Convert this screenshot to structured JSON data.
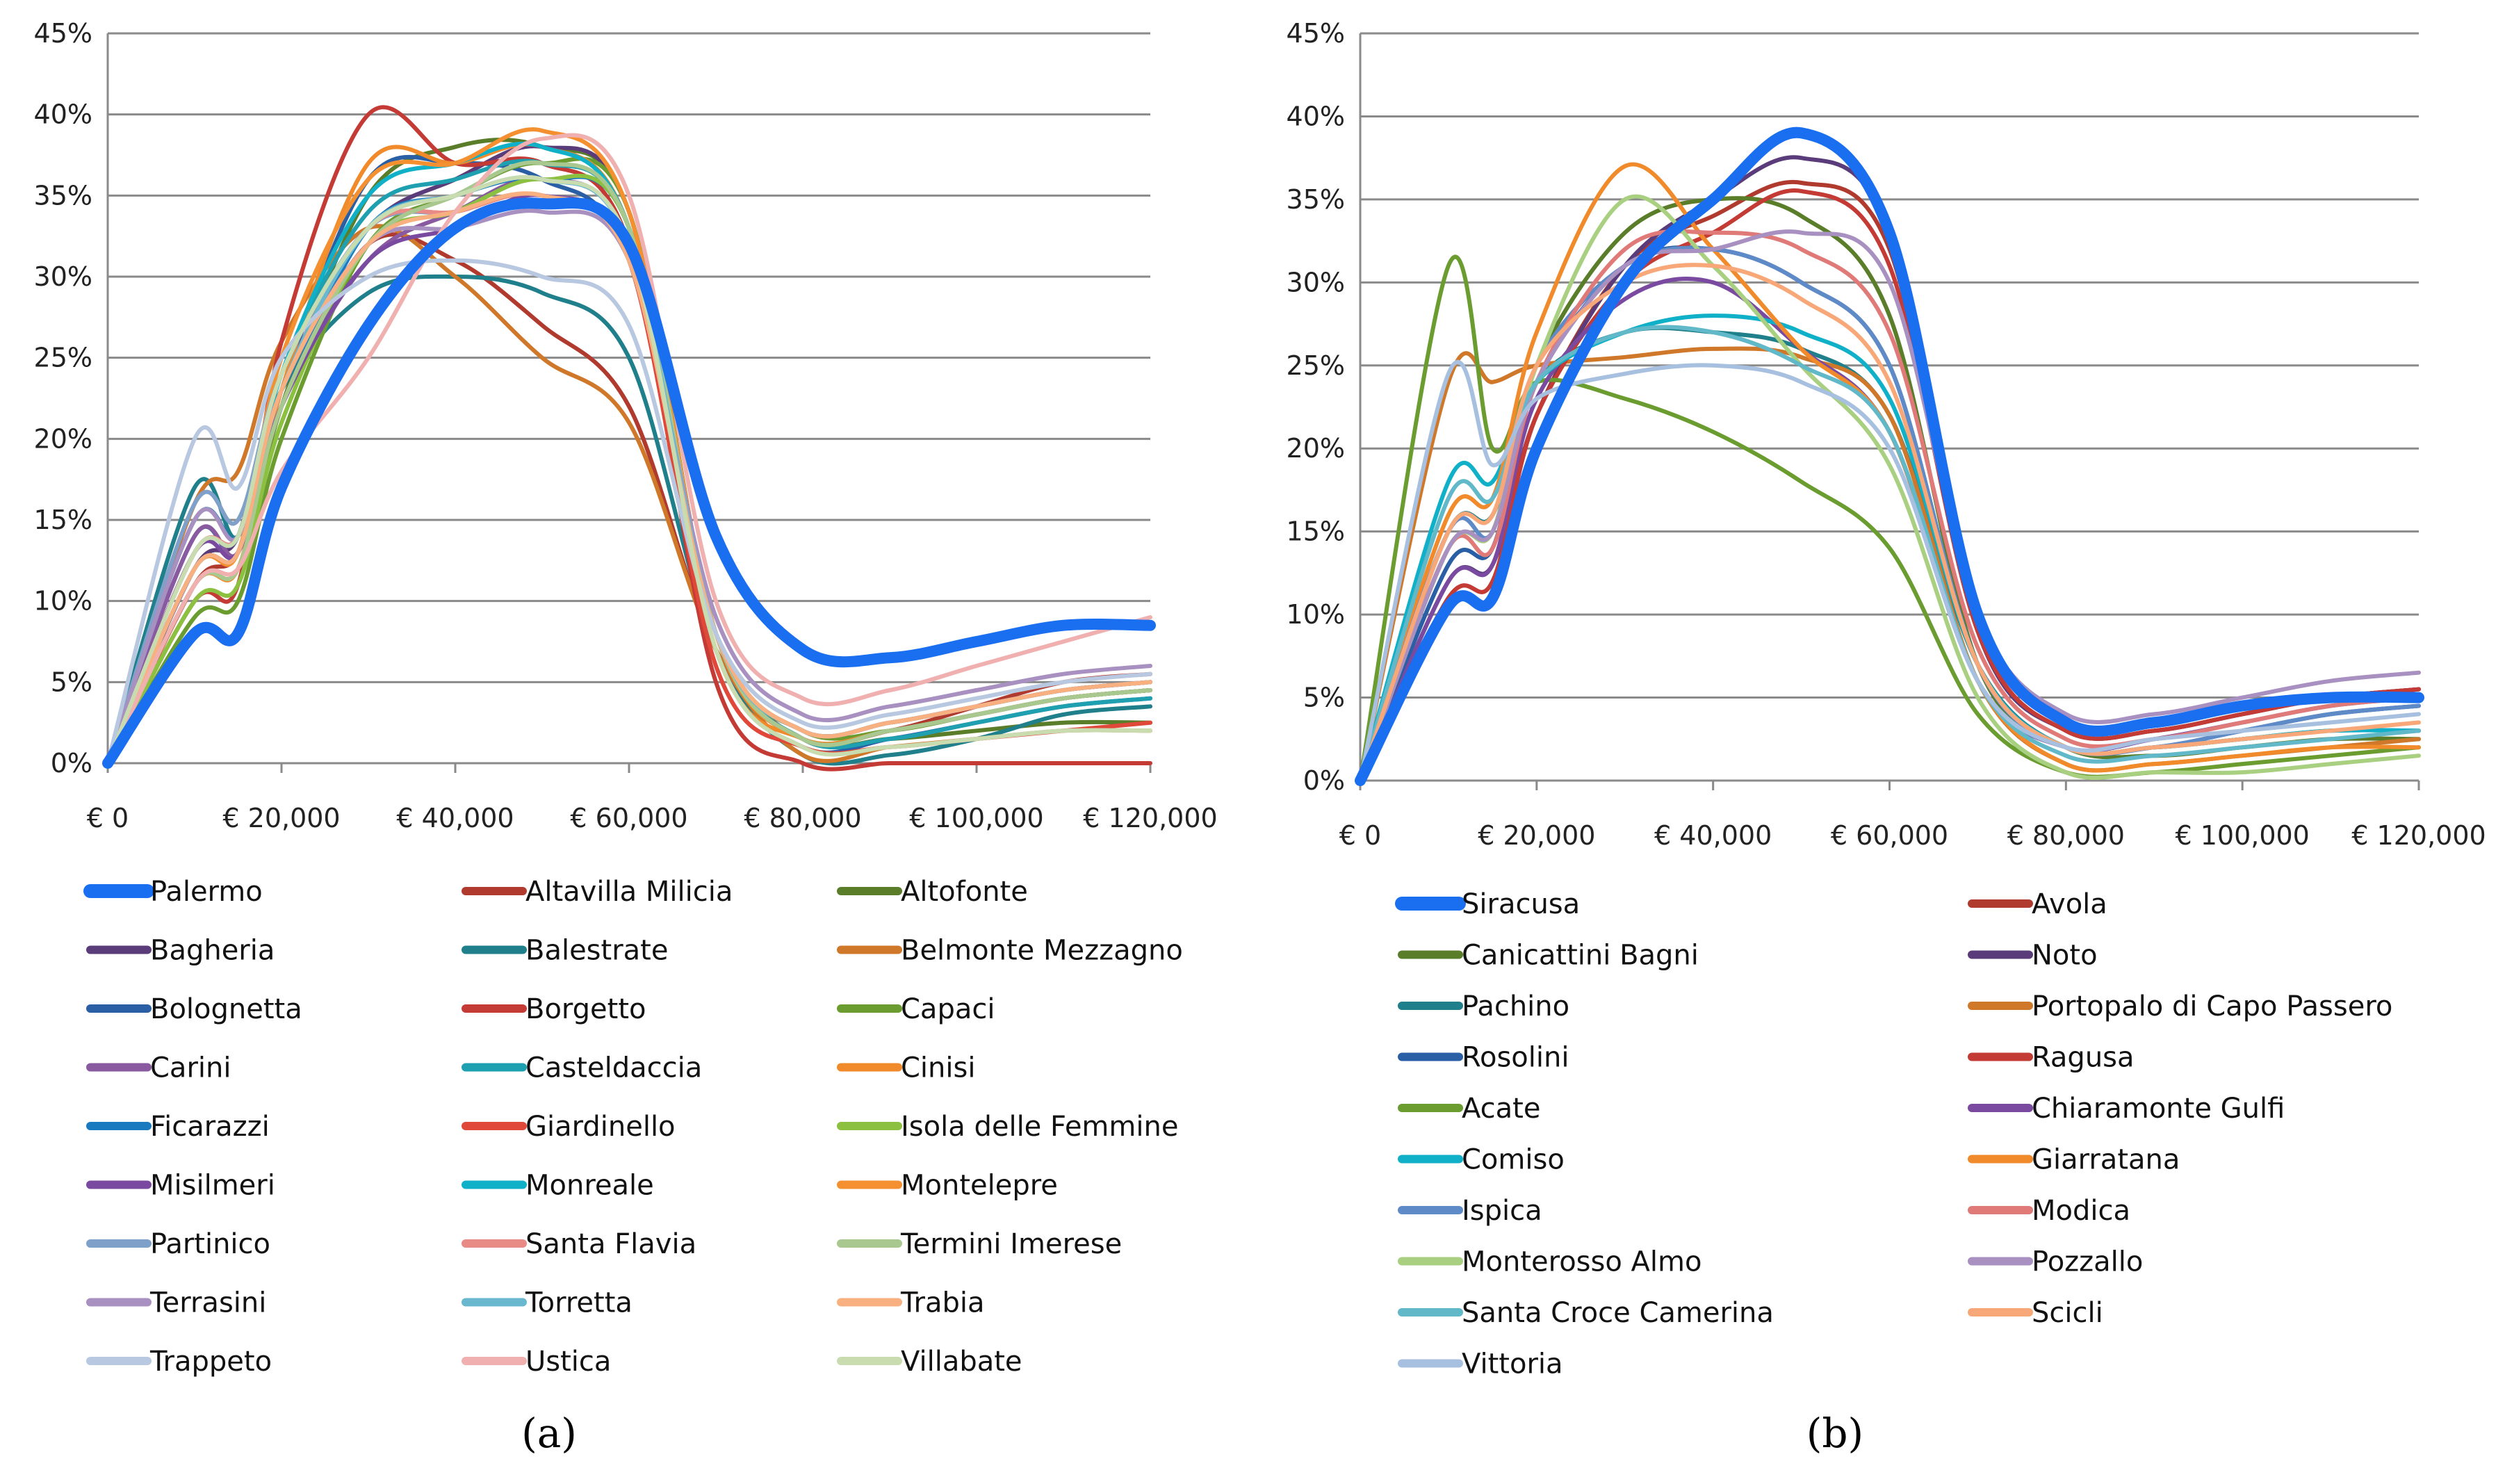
{
  "chart_data": [
    {
      "type": "line",
      "panel_label": "(a)",
      "x": [
        0,
        10000,
        15000,
        20000,
        30000,
        40000,
        50000,
        60000,
        70000,
        80000,
        90000,
        100000,
        110000,
        120000
      ],
      "xlim": [
        0,
        120000
      ],
      "ylim": [
        0,
        45
      ],
      "x_ticks": [
        "€ 0",
        "€ 20,000",
        "€ 40,000",
        "€ 60,000",
        "€ 80,000",
        "€ 100,000",
        "€ 120,000"
      ],
      "y_ticks": [
        "0%",
        "5%",
        "10%",
        "15%",
        "20%",
        "25%",
        "30%",
        "35%",
        "40%",
        "45%"
      ],
      "legend_columns": 3,
      "series": [
        {
          "name": "Palermo",
          "color": "#1a6ef0",
          "width": 16,
          "values": [
            0,
            8,
            8,
            17,
            27,
            33,
            34.5,
            32,
            14,
            7,
            6.5,
            7.5,
            8.5,
            8.5
          ]
        },
        {
          "name": "Altavilla Milicia",
          "color": "#b03a2e",
          "width": 6,
          "values": [
            0,
            11,
            13,
            22,
            32,
            31,
            27,
            22,
            7,
            1.5,
            2,
            3.5,
            5,
            5.5
          ]
        },
        {
          "name": "Altofonte",
          "color": "#5a7d2a",
          "width": 6,
          "values": [
            0,
            11,
            12,
            22,
            35,
            38,
            38,
            34,
            8,
            1.5,
            1.5,
            2,
            2.5,
            2.5
          ]
        },
        {
          "name": "Bagheria",
          "color": "#5b3c7a",
          "width": 6,
          "values": [
            0,
            12,
            14,
            24,
            33,
            36,
            38,
            34,
            8,
            1.5,
            2,
            3,
            4,
            4.5
          ]
        },
        {
          "name": "Balestrate",
          "color": "#1f7f8a",
          "width": 6,
          "values": [
            0,
            17,
            14,
            23,
            29,
            30,
            29,
            25,
            7,
            0.5,
            0.5,
            1.5,
            3,
            3.5
          ]
        },
        {
          "name": "Belmonte Mezzagno",
          "color": "#d0782a",
          "width": 6,
          "values": [
            0,
            16,
            18,
            26,
            33,
            30,
            25,
            21,
            7,
            0.5,
            1,
            1.5,
            2,
            2
          ]
        },
        {
          "name": "Bolognetta",
          "color": "#2a5fa5",
          "width": 6,
          "values": [
            0,
            14,
            13,
            23,
            36,
            37,
            36,
            31,
            7,
            1,
            1.5,
            2.5,
            3.5,
            4
          ]
        },
        {
          "name": "Borgetto",
          "color": "#c43a35",
          "width": 6,
          "values": [
            0,
            10,
            11,
            26,
            40,
            37,
            37,
            32,
            5,
            0,
            0,
            0,
            0,
            0
          ]
        },
        {
          "name": "Capaci",
          "color": "#6a9c30",
          "width": 6,
          "values": [
            0,
            9,
            10,
            20,
            32,
            35,
            37,
            34,
            8,
            2,
            2,
            3,
            4,
            4.5
          ]
        },
        {
          "name": "Carini",
          "color": "#8a5aa0",
          "width": 6,
          "values": [
            0,
            14,
            13,
            22,
            31,
            34,
            36,
            32,
            8,
            2,
            2.5,
            3.5,
            4.5,
            5
          ]
        },
        {
          "name": "Casteldaccia",
          "color": "#1fa0b0",
          "width": 6,
          "values": [
            0,
            13,
            14,
            24,
            34,
            36,
            37,
            33,
            8,
            1.5,
            1.5,
            2.5,
            3.5,
            4
          ]
        },
        {
          "name": "Cinisi",
          "color": "#f08a2a",
          "width": 6,
          "values": [
            0,
            11,
            12,
            23,
            37,
            37,
            38,
            33,
            7,
            1.5,
            2,
            3,
            4,
            4.5
          ]
        },
        {
          "name": "Ficarazzi",
          "color": "#1a7ac0",
          "width": 6,
          "values": [
            0,
            15,
            14,
            22,
            33,
            35,
            36,
            33,
            8,
            1.5,
            2,
            3,
            4,
            4.5
          ]
        },
        {
          "name": "Giardinello",
          "color": "#e0483a",
          "width": 6,
          "values": [
            0,
            12,
            13,
            23,
            33,
            34,
            35,
            31,
            6,
            1,
            1,
            1.5,
            2,
            2.5
          ]
        },
        {
          "name": "Isola delle Femmine",
          "color": "#8cc040",
          "width": 6,
          "values": [
            0,
            10,
            11,
            21,
            32,
            34,
            36,
            33,
            8,
            1.5,
            2,
            3,
            4,
            4.5
          ]
        },
        {
          "name": "Misilmeri",
          "color": "#7a4aa0",
          "width": 6,
          "values": [
            0,
            13,
            13,
            22,
            31,
            33,
            35,
            31,
            8,
            2,
            2.5,
            3.5,
            4.5,
            5
          ]
        },
        {
          "name": "Monreale",
          "color": "#10b0c8",
          "width": 6,
          "values": [
            0,
            12,
            13,
            24,
            35,
            37,
            38,
            33,
            8,
            1.5,
            2,
            3,
            4,
            4.5
          ]
        },
        {
          "name": "Montelepre",
          "color": "#f59030",
          "width": 6,
          "values": [
            0,
            12,
            13,
            25,
            36,
            37,
            39,
            34,
            8,
            1.5,
            2,
            3,
            4,
            4.5
          ]
        },
        {
          "name": "Partinico",
          "color": "#7fa0c8",
          "width": 6,
          "values": [
            0,
            16,
            15,
            24,
            33,
            34,
            35,
            31,
            8,
            2,
            2.5,
            3.5,
            4.5,
            5
          ]
        },
        {
          "name": "Santa Flavia",
          "color": "#e88a85",
          "width": 6,
          "values": [
            0,
            13,
            14,
            23,
            33,
            34,
            35,
            31,
            8,
            2,
            2.5,
            3.5,
            4.5,
            5
          ]
        },
        {
          "name": "Termini Imerese",
          "color": "#a8c890",
          "width": 6,
          "values": [
            0,
            11,
            12,
            22,
            32,
            35,
            37,
            33,
            8,
            1.5,
            2,
            3,
            4,
            4.5
          ]
        },
        {
          "name": "Terrasini",
          "color": "#a890c0",
          "width": 6,
          "values": [
            0,
            15,
            14,
            23,
            32,
            33,
            34,
            31,
            9,
            3,
            3.5,
            4.5,
            5.5,
            6
          ]
        },
        {
          "name": "Torretta",
          "color": "#6ab8d0",
          "width": 6,
          "values": [
            0,
            12,
            13,
            23,
            33,
            35,
            36,
            32,
            8,
            2,
            2.5,
            3.5,
            4.5,
            5
          ]
        },
        {
          "name": "Trabia",
          "color": "#f8b080",
          "width": 6,
          "values": [
            0,
            12,
            13,
            23,
            32,
            34,
            35,
            31,
            8,
            2,
            2.5,
            3.5,
            4.5,
            5
          ]
        },
        {
          "name": "Trappeto",
          "color": "#b8c8e0",
          "width": 6,
          "values": [
            0,
            20,
            17,
            25,
            30,
            31,
            30,
            27,
            8,
            2.5,
            3,
            4,
            5,
            5.5
          ]
        },
        {
          "name": "Ustica",
          "color": "#f0b0b0",
          "width": 6,
          "values": [
            0,
            11,
            12,
            18,
            25,
            34,
            38.5,
            35,
            10,
            4,
            4.5,
            6,
            7.5,
            9
          ]
        },
        {
          "name": "Villabate",
          "color": "#c8dcb0",
          "width": 6,
          "values": [
            0,
            13,
            14,
            24,
            33,
            35,
            36,
            32,
            7,
            1,
            1,
            1.5,
            2,
            2
          ]
        }
      ]
    },
    {
      "type": "line",
      "panel_label": "(b)",
      "x": [
        0,
        10000,
        15000,
        20000,
        30000,
        40000,
        50000,
        60000,
        70000,
        80000,
        90000,
        100000,
        110000,
        120000
      ],
      "xlim": [
        0,
        120000
      ],
      "ylim": [
        0,
        45
      ],
      "x_ticks": [
        "€ 0",
        "€ 20,000",
        "€ 40,000",
        "€ 60,000",
        "€ 80,000",
        "€ 100,000",
        "€ 120,000"
      ],
      "y_ticks": [
        "0%",
        "5%",
        "10%",
        "15%",
        "20%",
        "25%",
        "30%",
        "35%",
        "40%",
        "45%"
      ],
      "legend_columns": 2,
      "series": [
        {
          "name": "Siracusa",
          "color": "#1a6ef0",
          "width": 16,
          "values": [
            0,
            10.5,
            11,
            20,
            30,
            35,
            39,
            33,
            10,
            3.5,
            3.5,
            4.5,
            5,
            5
          ]
        },
        {
          "name": "Avola",
          "color": "#b03a2e",
          "width": 6,
          "values": [
            0,
            11,
            12,
            22,
            31,
            34,
            36,
            32,
            9,
            3,
            3,
            4,
            5,
            5.5
          ]
        },
        {
          "name": "Canicattini Bagni",
          "color": "#5a7d2a",
          "width": 6,
          "values": [
            0,
            14,
            15,
            25,
            33,
            35,
            34,
            28,
            7,
            2,
            1.5,
            2,
            2.5,
            2.5
          ]
        },
        {
          "name": "Noto",
          "color": "#5b3c7a",
          "width": 6,
          "values": [
            0,
            12,
            13,
            22,
            31,
            35,
            37.5,
            33,
            9,
            3,
            3,
            4,
            5,
            5.5
          ]
        },
        {
          "name": "Pachino",
          "color": "#1f7f8a",
          "width": 6,
          "values": [
            0,
            15,
            16,
            24,
            27,
            27,
            26,
            22,
            7,
            2,
            2,
            2.5,
            3,
            3
          ]
        },
        {
          "name": "Portopalo di Capo Passero",
          "color": "#d0782a",
          "width": 6,
          "values": [
            0,
            24,
            24,
            25,
            25.5,
            26,
            25.5,
            22,
            6,
            1,
            1,
            1.5,
            2,
            2.5
          ]
        },
        {
          "name": "Rosolini",
          "color": "#2a5fa5",
          "width": 6,
          "values": [
            0,
            13,
            14,
            24,
            31,
            32,
            30,
            25,
            7,
            2,
            2,
            3,
            4,
            4.5
          ]
        },
        {
          "name": "Ragusa",
          "color": "#c43a35",
          "width": 6,
          "values": [
            0,
            11,
            12,
            22,
            30,
            33,
            35.5,
            31,
            9,
            3,
            3,
            4,
            5,
            5.5
          ]
        },
        {
          "name": "Acate",
          "color": "#6a9c30",
          "width": 6,
          "values": [
            0,
            31,
            20,
            24,
            23,
            21,
            18,
            14,
            4,
            0.5,
            0.5,
            1,
            1.5,
            2
          ]
        },
        {
          "name": "Chiaramonte Gulfi",
          "color": "#7a4aa0",
          "width": 6,
          "values": [
            0,
            12,
            13,
            23,
            29,
            30,
            26,
            21,
            6,
            2,
            2.5,
            3.5,
            4.5,
            5
          ]
        },
        {
          "name": "Comiso",
          "color": "#10b0c8",
          "width": 6,
          "values": [
            0,
            18,
            18,
            24,
            27,
            28,
            27,
            23,
            7,
            2,
            2,
            2.5,
            3,
            3
          ]
        },
        {
          "name": "Giarratana",
          "color": "#f08a2a",
          "width": 6,
          "values": [
            0,
            16,
            17,
            27,
            37,
            32,
            26,
            21,
            6,
            1,
            1,
            1.5,
            2,
            2
          ]
        },
        {
          "name": "Ispica",
          "color": "#5f8ac8",
          "width": 6,
          "values": [
            0,
            15,
            15,
            25,
            31,
            32,
            30,
            25,
            7,
            2,
            2,
            3,
            4,
            4.5
          ]
        },
        {
          "name": "Modica",
          "color": "#e07a78",
          "width": 6,
          "values": [
            0,
            14,
            14,
            24,
            32,
            33,
            32,
            27,
            8,
            2.5,
            2.5,
            3.5,
            4.5,
            5
          ]
        },
        {
          "name": "Monterosso Almo",
          "color": "#a8d080",
          "width": 6,
          "values": [
            0,
            14,
            15,
            25,
            35,
            31,
            25,
            19,
            5,
            0.5,
            0.5,
            0.5,
            1,
            1.5
          ]
        },
        {
          "name": "Pozzallo",
          "color": "#a890c0",
          "width": 6,
          "values": [
            0,
            14,
            15,
            24,
            31,
            32,
            33,
            30,
            10,
            4,
            4,
            5,
            6,
            6.5
          ]
        },
        {
          "name": "Santa Croce Camerina",
          "color": "#60b8c8",
          "width": 6,
          "values": [
            0,
            17,
            17,
            24,
            27,
            27,
            25,
            21,
            6,
            1.5,
            1.5,
            2,
            2.5,
            3
          ]
        },
        {
          "name": "Scicli",
          "color": "#f8a878",
          "width": 6,
          "values": [
            0,
            15,
            16,
            25,
            30,
            31,
            29,
            24,
            7,
            2,
            2,
            2.5,
            3,
            3.5
          ]
        },
        {
          "name": "Vittoria",
          "color": "#a8c0e0",
          "width": 6,
          "values": [
            0,
            24.5,
            19,
            23,
            24.5,
            25,
            24,
            20,
            6,
            2,
            2.5,
            3,
            3.5,
            4
          ]
        }
      ]
    }
  ]
}
